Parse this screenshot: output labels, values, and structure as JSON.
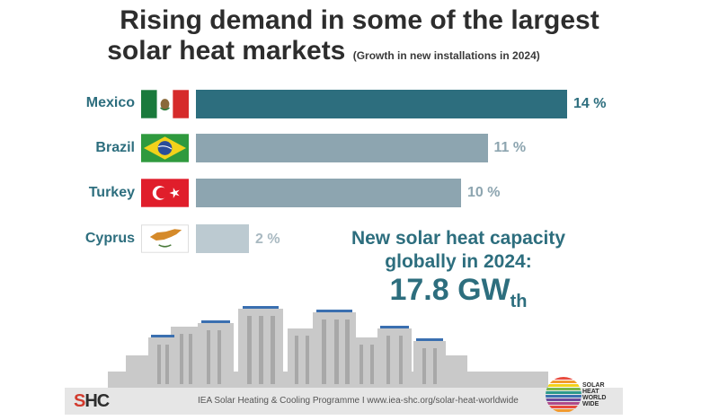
{
  "header": {
    "title_line1": "Rising demand in some of the largest",
    "title_line2": "solar heat markets",
    "subtitle": "(Growth in new installations in 2024)"
  },
  "chart_data": {
    "type": "bar",
    "orientation": "horizontal",
    "categories": [
      "Mexico",
      "Brazil",
      "Turkey",
      "Cyprus"
    ],
    "values": [
      14,
      11,
      10,
      2
    ],
    "value_labels": [
      "14 %",
      "11 %",
      "10 %",
      "2 %"
    ],
    "unit": "%",
    "bar_colors": [
      "#2d6e7e",
      "#8da5b0",
      "#8da5b0",
      "#bccad1"
    ],
    "label_colors": [
      "#2d6e7e",
      "#8da5b0",
      "#8da5b0",
      "#a9b9c1"
    ],
    "grid": false,
    "legend": "none"
  },
  "flags": [
    {
      "country": "Mexico",
      "icon": "mexico-flag-icon"
    },
    {
      "country": "Brazil",
      "icon": "brazil-flag-icon"
    },
    {
      "country": "Turkey",
      "icon": "turkey-flag-icon"
    },
    {
      "country": "Cyprus",
      "icon": "cyprus-flag-icon"
    }
  ],
  "capacity": {
    "line1": "New solar heat capacity",
    "line2": "globally in 2024:",
    "value": "17.8 GW",
    "subscript": "th"
  },
  "footer": {
    "logo_text_red": "S",
    "logo_text_dark": "HC",
    "text": "IEA Solar Heating & Cooling Programme I www.iea-shc.org/solar-heat-worldwide",
    "badge_lines": [
      "SOLAR",
      "HEAT",
      "WORLD",
      "WIDE"
    ]
  },
  "colors": {
    "accent": "#2d6e7e",
    "muted_bar": "#8da5b0",
    "light_bar": "#bccad1",
    "title": "#2d2d2d",
    "footer_bg": "#e6e6e6",
    "logo_red": "#d23b2e"
  }
}
